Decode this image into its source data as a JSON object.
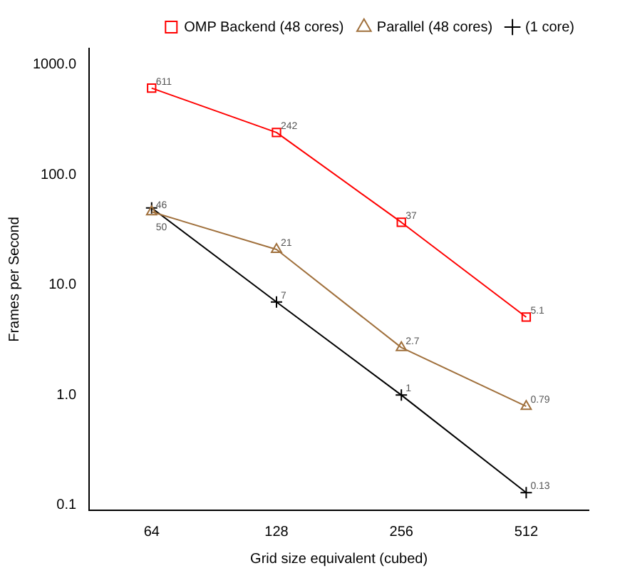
{
  "chart_data": {
    "type": "line",
    "xlabel": "Grid size equivalent (cubed)",
    "ylabel": "Frames per Second",
    "categories": [
      "64",
      "128",
      "256",
      "512"
    ],
    "series": [
      {
        "name": "OMP Backend (48 cores)",
        "color": "#ff0000",
        "marker": "square",
        "values": [
          611,
          242,
          37,
          5.1
        ]
      },
      {
        "name": "Parallel (48 cores)",
        "color": "#a0703c",
        "marker": "triangle",
        "values": [
          46,
          21,
          2.7,
          0.79
        ]
      },
      {
        "name": "(1 core)",
        "color": "#000000",
        "marker": "cross",
        "values": [
          50,
          7,
          1,
          0.13
        ]
      }
    ],
    "log": "y",
    "ylim": [
      0.09,
      1400
    ],
    "yticks": [
      {
        "value": 0.1,
        "label": "0.1"
      },
      {
        "value": 1,
        "label": "1.0"
      },
      {
        "value": 10,
        "label": "10.0"
      },
      {
        "value": 100,
        "label": "100.0"
      },
      {
        "value": 1000,
        "label": "1000.0"
      }
    ],
    "grid": false,
    "legend": "top right",
    "data_labels": true,
    "line_style": "solid"
  }
}
